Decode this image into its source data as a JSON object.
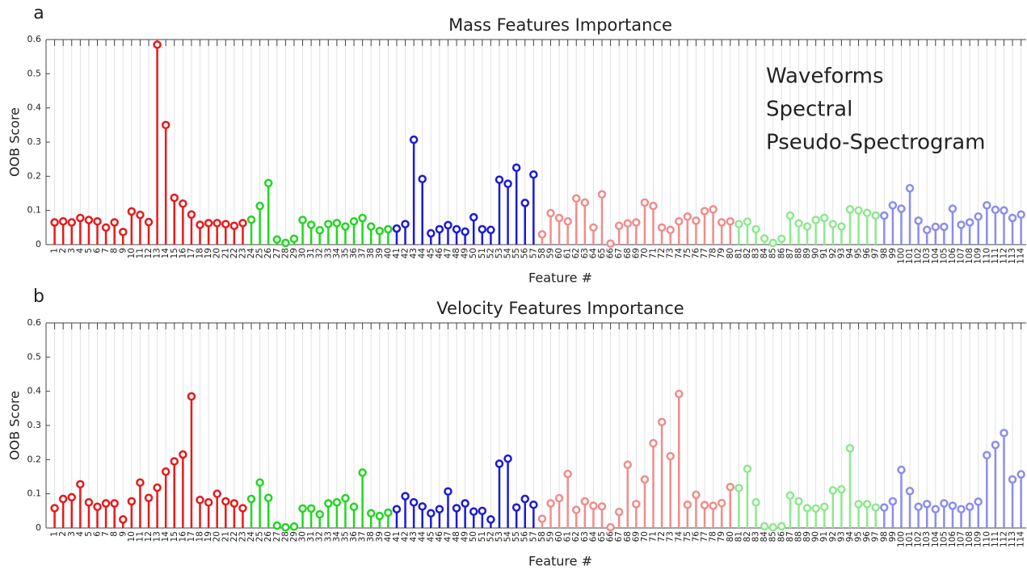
{
  "chart_data": [
    {
      "type": "stem",
      "panel": "a",
      "title": "Mass Features Importance",
      "xlabel": "Feature #",
      "ylabel": "OOB Score",
      "xlim": [
        0,
        114.6
      ],
      "ylim": [
        0,
        0.6
      ],
      "yticks": [
        0,
        0.1,
        0.2,
        0.3,
        0.4,
        0.5,
        0.6
      ],
      "grid": "x",
      "legend": "upper right",
      "xticks": [
        1,
        2,
        3,
        4,
        5,
        6,
        7,
        8,
        9,
        10,
        11,
        12,
        13,
        14,
        15,
        16,
        17,
        18,
        19,
        20,
        21,
        22,
        23,
        24,
        25,
        26,
        27,
        28,
        29,
        30,
        31,
        32,
        33,
        34,
        35,
        36,
        37,
        38,
        39,
        40,
        41,
        42,
        43,
        44,
        45,
        46,
        47,
        48,
        49,
        50,
        51,
        52,
        53,
        54,
        55,
        56,
        57,
        58,
        59,
        60,
        61,
        62,
        63,
        64,
        65,
        66,
        67,
        68,
        69,
        70,
        71,
        72,
        73,
        74,
        75,
        76,
        77,
        78,
        79,
        80,
        81,
        82,
        83,
        84,
        85,
        86,
        87,
        88,
        89,
        90,
        91,
        92,
        93,
        94,
        95,
        96,
        97,
        98,
        99,
        100,
        101,
        102,
        103,
        104,
        105,
        106,
        107,
        108,
        109,
        110,
        111,
        112,
        113,
        114
      ],
      "series": [
        {
          "name": "Waveforms",
          "color": "#e8191a",
          "x": [
            1,
            2,
            3,
            4,
            5,
            6,
            7,
            8,
            9,
            10,
            11,
            12,
            13,
            14,
            15,
            16,
            17,
            18,
            19,
            20,
            21,
            22,
            23
          ],
          "values": [
            0.065,
            0.068,
            0.065,
            0.078,
            0.072,
            0.068,
            0.05,
            0.065,
            0.037,
            0.097,
            0.087,
            0.066,
            0.585,
            0.35,
            0.137,
            0.12,
            0.088,
            0.058,
            0.063,
            0.063,
            0.06,
            0.055,
            0.063
          ]
        },
        {
          "name": "Spectral",
          "color": "#21d621",
          "x": [
            24,
            25,
            26,
            27,
            28,
            29,
            30,
            31,
            32,
            33,
            34,
            35,
            36,
            37,
            38,
            39,
            40
          ],
          "values": [
            0.073,
            0.113,
            0.18,
            0.015,
            0.005,
            0.017,
            0.072,
            0.058,
            0.042,
            0.06,
            0.063,
            0.053,
            0.068,
            0.078,
            0.053,
            0.04,
            0.045
          ]
        },
        {
          "name": "Pseudo-Spectrogram",
          "color": "#1a1adb",
          "x": [
            41,
            42,
            43,
            44,
            45,
            46,
            47,
            48,
            49,
            50,
            51,
            52,
            53,
            54,
            55,
            56,
            57
          ],
          "values": [
            0.047,
            0.06,
            0.307,
            0.192,
            0.033,
            0.045,
            0.057,
            0.045,
            0.038,
            0.08,
            0.045,
            0.043,
            0.19,
            0.178,
            0.225,
            0.122,
            0.205
          ]
        },
        {
          "color": "#f08c8c",
          "x": [
            58,
            59,
            60,
            61,
            62,
            63,
            64,
            65,
            66,
            67,
            68,
            69,
            70,
            71,
            72,
            73,
            74,
            75,
            76,
            77,
            78,
            79,
            80
          ],
          "values": [
            0.03,
            0.092,
            0.078,
            0.068,
            0.135,
            0.123,
            0.05,
            0.147,
            0.003,
            0.055,
            0.062,
            0.065,
            0.123,
            0.113,
            0.05,
            0.043,
            0.068,
            0.082,
            0.07,
            0.098,
            0.103,
            0.065,
            0.068
          ]
        },
        {
          "color": "#8ee88e",
          "x": [
            81,
            82,
            83,
            84,
            85,
            86,
            87,
            88,
            89,
            90,
            91,
            92,
            93,
            94,
            95,
            96,
            97
          ],
          "values": [
            0.06,
            0.067,
            0.045,
            0.018,
            0.005,
            0.017,
            0.085,
            0.062,
            0.053,
            0.072,
            0.078,
            0.06,
            0.053,
            0.103,
            0.1,
            0.093,
            0.085
          ]
        },
        {
          "color": "#8c8cf0",
          "x": [
            98,
            99,
            100,
            101,
            102,
            103,
            104,
            105,
            106,
            107,
            108,
            109,
            110,
            111,
            112,
            113,
            114
          ],
          "values": [
            0.085,
            0.115,
            0.105,
            0.165,
            0.07,
            0.043,
            0.052,
            0.052,
            0.105,
            0.058,
            0.065,
            0.082,
            0.115,
            0.102,
            0.1,
            0.078,
            0.088
          ]
        }
      ]
    },
    {
      "type": "stem",
      "panel": "b",
      "title": "Velocity Features Importance",
      "xlabel": "Feature #",
      "ylabel": "OOB Score",
      "xlim": [
        0,
        114.6
      ],
      "ylim": [
        0,
        0.6
      ],
      "yticks": [
        0,
        0.1,
        0.2,
        0.3,
        0.4,
        0.5,
        0.6
      ],
      "grid": "x",
      "xticks": [
        1,
        2,
        3,
        4,
        5,
        6,
        7,
        8,
        9,
        10,
        11,
        12,
        13,
        14,
        15,
        16,
        17,
        18,
        19,
        20,
        21,
        22,
        23,
        24,
        25,
        26,
        27,
        28,
        29,
        30,
        31,
        32,
        33,
        34,
        35,
        36,
        37,
        38,
        39,
        40,
        41,
        42,
        43,
        44,
        45,
        46,
        47,
        48,
        49,
        50,
        51,
        52,
        53,
        54,
        55,
        56,
        57,
        58,
        59,
        60,
        61,
        62,
        63,
        64,
        65,
        66,
        67,
        68,
        69,
        70,
        71,
        72,
        73,
        74,
        75,
        76,
        77,
        78,
        79,
        80,
        81,
        82,
        83,
        84,
        85,
        86,
        87,
        88,
        89,
        90,
        91,
        92,
        93,
        94,
        95,
        96,
        97,
        98,
        99,
        100,
        101,
        102,
        103,
        104,
        105,
        106,
        107,
        108,
        109,
        110,
        111,
        112,
        113,
        114
      ],
      "series": [
        {
          "color": "#e8191a",
          "x": [
            1,
            2,
            3,
            4,
            5,
            6,
            7,
            8,
            9,
            10,
            11,
            12,
            13,
            14,
            15,
            16,
            17,
            18,
            19,
            20,
            21,
            22,
            23
          ],
          "values": [
            0.058,
            0.085,
            0.09,
            0.128,
            0.075,
            0.062,
            0.072,
            0.072,
            0.025,
            0.078,
            0.133,
            0.088,
            0.118,
            0.165,
            0.195,
            0.215,
            0.385,
            0.082,
            0.075,
            0.1,
            0.078,
            0.072,
            0.058
          ]
        },
        {
          "color": "#21d621",
          "x": [
            24,
            25,
            26,
            27,
            28,
            29,
            30,
            31,
            32,
            33,
            34,
            35,
            36,
            37,
            38,
            39,
            40
          ],
          "values": [
            0.085,
            0.133,
            0.088,
            0.007,
            0.002,
            0.004,
            0.057,
            0.057,
            0.04,
            0.072,
            0.075,
            0.087,
            0.062,
            0.162,
            0.043,
            0.035,
            0.045
          ]
        },
        {
          "color": "#1a1adb",
          "x": [
            41,
            42,
            43,
            44,
            45,
            46,
            47,
            48,
            49,
            50,
            51,
            52,
            53,
            54,
            55,
            56,
            57
          ],
          "values": [
            0.055,
            0.093,
            0.075,
            0.063,
            0.043,
            0.055,
            0.107,
            0.058,
            0.072,
            0.048,
            0.05,
            0.025,
            0.188,
            0.203,
            0.06,
            0.085,
            0.068
          ]
        },
        {
          "color": "#f08c8c",
          "x": [
            58,
            59,
            60,
            61,
            62,
            63,
            64,
            65,
            66,
            67,
            68,
            69,
            70,
            71,
            72,
            73,
            74,
            75,
            76,
            77,
            78,
            79,
            80
          ],
          "values": [
            0.027,
            0.072,
            0.087,
            0.158,
            0.053,
            0.078,
            0.065,
            0.063,
            0.002,
            0.047,
            0.185,
            0.07,
            0.142,
            0.248,
            0.31,
            0.21,
            0.392,
            0.068,
            0.097,
            0.067,
            0.065,
            0.073,
            0.12
          ]
        },
        {
          "color": "#8ee88e",
          "x": [
            81,
            82,
            83,
            84,
            85,
            86,
            87,
            88,
            89,
            90,
            91,
            92,
            93,
            94,
            95,
            96,
            97
          ],
          "values": [
            0.117,
            0.173,
            0.075,
            0.005,
            0.002,
            0.005,
            0.095,
            0.078,
            0.058,
            0.057,
            0.062,
            0.11,
            0.113,
            0.233,
            0.07,
            0.07,
            0.06
          ]
        },
        {
          "color": "#8c8cf0",
          "x": [
            98,
            99,
            100,
            101,
            102,
            103,
            104,
            105,
            106,
            107,
            108,
            109,
            110,
            111,
            112,
            113,
            114
          ],
          "values": [
            0.06,
            0.078,
            0.17,
            0.108,
            0.062,
            0.07,
            0.055,
            0.072,
            0.065,
            0.055,
            0.062,
            0.077,
            0.213,
            0.243,
            0.278,
            0.142,
            0.157
          ]
        }
      ]
    }
  ]
}
